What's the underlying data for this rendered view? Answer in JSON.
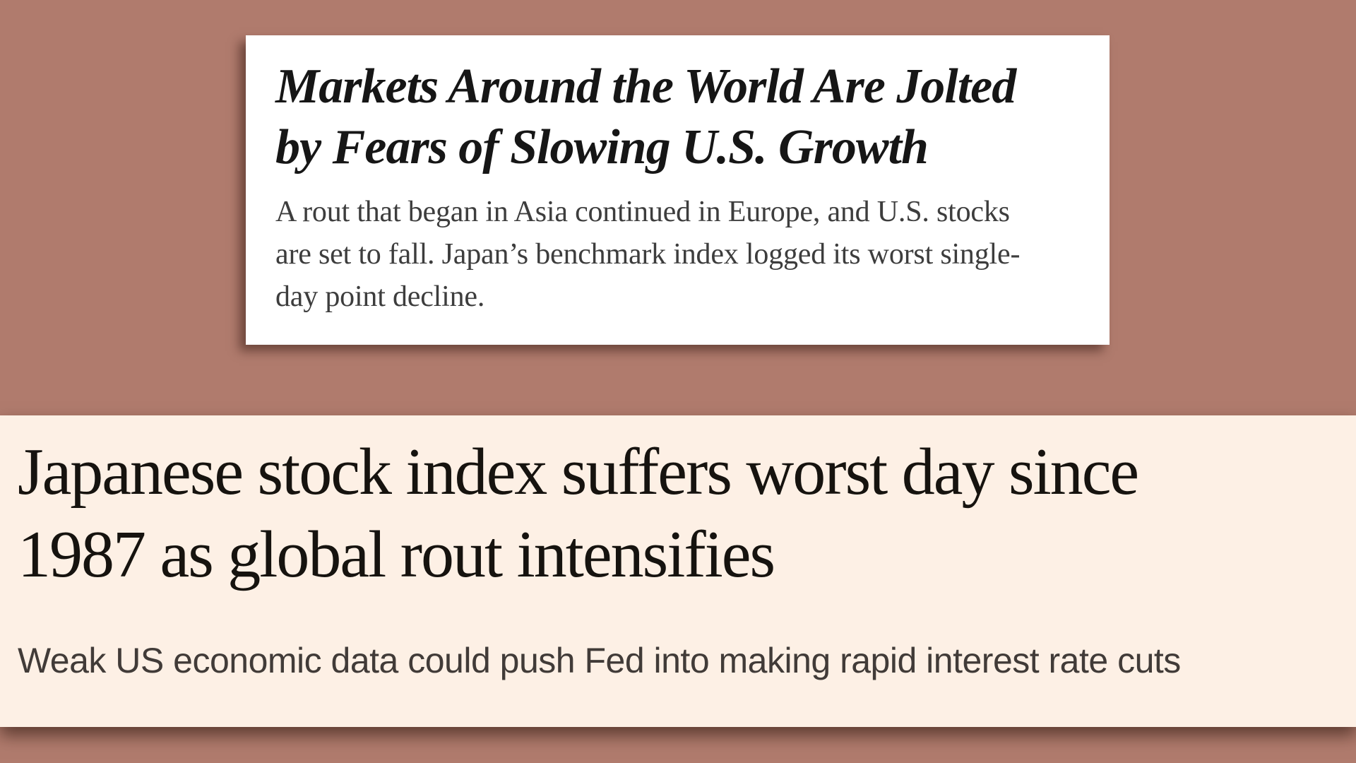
{
  "page": {
    "background_color": "#b07b6d"
  },
  "nyt_card": {
    "background_color": "#ffffff",
    "headline_color": "#161616",
    "dek_color": "#3d3d3d",
    "headline_lines": [
      "Markets Around the World Are Jolted",
      "by Fears of Slowing U.S. Growth"
    ],
    "dek_lines": [
      "A rout that began in Asia continued in Europe, and U.S. stocks",
      "are set to fall. Japan’s benchmark index logged its worst single-",
      "day point decline."
    ]
  },
  "ft_banner": {
    "background_color": "#fdf0e5",
    "headline_color": "#16130f",
    "subhead_color": "#413b38",
    "headline_lines": [
      "Japanese stock index suffers worst day since",
      "1987 as global rout intensifies"
    ],
    "subhead": "Weak US economic data could push Fed into making rapid interest rate cuts"
  }
}
